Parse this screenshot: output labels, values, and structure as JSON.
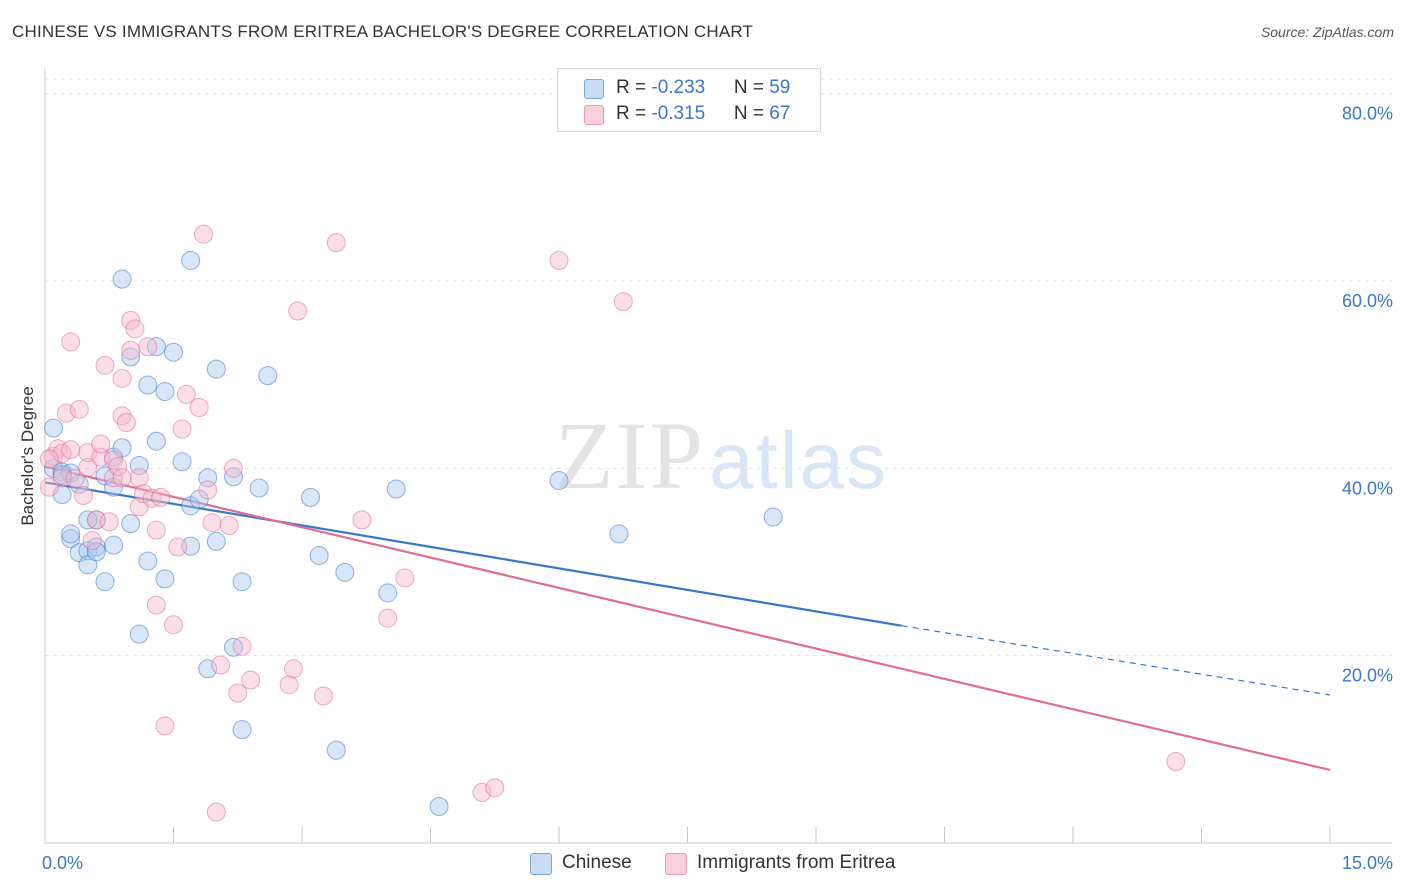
{
  "header": {
    "title": "CHINESE VS IMMIGRANTS FROM ERITREA BACHELOR'S DEGREE CORRELATION CHART",
    "source": "Source: ZipAtlas.com"
  },
  "watermark": {
    "zip": "ZIP",
    "atlas": "atlas"
  },
  "legend": {
    "rows": [
      {
        "r_label": "R = ",
        "r_value": "-0.233",
        "n_label": "N = ",
        "n_value": "59",
        "color": "#a9c8f0"
      },
      {
        "r_label": "R = ",
        "r_value": "-0.315",
        "n_label": "N = ",
        "n_value": "67",
        "color": "#f5b8cb"
      }
    ]
  },
  "bottom_legend": {
    "items": [
      "Chinese",
      "Immigrants from Eritrea"
    ]
  },
  "chart_data": {
    "type": "scatter",
    "ylabel": "Bachelor's Degree",
    "xlim": [
      0,
      15
    ],
    "ylim": [
      0,
      82
    ],
    "x_tick_labels": {
      "left": "0.0%",
      "right": "15.0%"
    },
    "y_ticks": [
      {
        "value": 20,
        "label": "20.0%"
      },
      {
        "value": 40,
        "label": "40.0%"
      },
      {
        "value": 60,
        "label": "60.0%"
      },
      {
        "value": 80,
        "label": "80.0%"
      }
    ],
    "grid": true,
    "series": [
      {
        "name": "Chinese",
        "color": "#3a78c7",
        "fill": "#a9c8f0",
        "trend": {
          "x0": 0.0,
          "y0": 38.5,
          "x1": 10.0,
          "y1": 23.2,
          "dash_to_x": 15.0,
          "dash_to_y": 15.8
        },
        "points": [
          [
            0.1,
            44.3
          ],
          [
            0.1,
            40.0
          ],
          [
            0.2,
            39.6
          ],
          [
            0.2,
            37.2
          ],
          [
            0.3,
            39.5
          ],
          [
            0.3,
            32.5
          ],
          [
            0.3,
            33.0
          ],
          [
            0.4,
            38.3
          ],
          [
            0.4,
            31.0
          ],
          [
            0.5,
            31.2
          ],
          [
            0.5,
            29.7
          ],
          [
            0.6,
            31.6
          ],
          [
            0.6,
            31.1
          ],
          [
            0.6,
            34.5
          ],
          [
            0.7,
            39.2
          ],
          [
            0.7,
            27.9
          ],
          [
            0.8,
            41.2
          ],
          [
            0.8,
            38.0
          ],
          [
            0.8,
            31.8
          ],
          [
            0.9,
            42.2
          ],
          [
            0.9,
            60.2
          ],
          [
            1.0,
            51.9
          ],
          [
            1.0,
            34.1
          ],
          [
            1.1,
            22.3
          ],
          [
            1.1,
            40.3
          ],
          [
            1.2,
            48.9
          ],
          [
            1.2,
            30.1
          ],
          [
            1.3,
            53.0
          ],
          [
            1.3,
            42.9
          ],
          [
            1.4,
            48.2
          ],
          [
            1.4,
            28.2
          ],
          [
            1.5,
            52.4
          ],
          [
            1.6,
            40.7
          ],
          [
            1.7,
            31.7
          ],
          [
            1.7,
            36.0
          ],
          [
            1.7,
            62.2
          ],
          [
            1.8,
            36.7
          ],
          [
            1.9,
            39.0
          ],
          [
            1.9,
            18.6
          ],
          [
            2.0,
            50.6
          ],
          [
            2.0,
            32.2
          ],
          [
            2.2,
            39.1
          ],
          [
            2.2,
            20.9
          ],
          [
            2.3,
            27.9
          ],
          [
            2.3,
            12.1
          ],
          [
            2.5,
            37.9
          ],
          [
            2.6,
            49.9
          ],
          [
            3.1,
            36.9
          ],
          [
            3.2,
            30.7
          ],
          [
            3.4,
            9.9
          ],
          [
            3.5,
            28.9
          ],
          [
            4.0,
            26.7
          ],
          [
            4.1,
            37.8
          ],
          [
            4.6,
            3.9
          ],
          [
            6.0,
            38.7
          ],
          [
            6.7,
            33.0
          ],
          [
            8.5,
            34.8
          ],
          [
            0.2,
            39.3
          ],
          [
            0.5,
            34.5
          ]
        ]
      },
      {
        "name": "Immigrants from Eritrea",
        "color": "#e06c98",
        "fill": "#f5b8cb",
        "trend": {
          "x0": 0.0,
          "y0": 40.2,
          "x1": 15.0,
          "y1": 7.8
        },
        "points": [
          [
            0.05,
            38.0
          ],
          [
            0.1,
            41.3
          ],
          [
            0.15,
            42.1
          ],
          [
            0.2,
            41.6
          ],
          [
            0.2,
            39.0
          ],
          [
            0.25,
            45.9
          ],
          [
            0.3,
            53.5
          ],
          [
            0.35,
            38.9
          ],
          [
            0.4,
            46.3
          ],
          [
            0.45,
            37.1
          ],
          [
            0.5,
            40.1
          ],
          [
            0.5,
            41.7
          ],
          [
            0.55,
            32.3
          ],
          [
            0.6,
            34.5
          ],
          [
            0.65,
            41.2
          ],
          [
            0.65,
            42.6
          ],
          [
            0.7,
            51.0
          ],
          [
            0.75,
            34.3
          ],
          [
            0.8,
            39.0
          ],
          [
            0.8,
            40.9
          ],
          [
            0.85,
            40.2
          ],
          [
            0.9,
            49.6
          ],
          [
            0.9,
            45.6
          ],
          [
            0.95,
            44.9
          ],
          [
            1.0,
            52.6
          ],
          [
            1.0,
            55.8
          ],
          [
            1.05,
            54.9
          ],
          [
            1.1,
            39.0
          ],
          [
            1.1,
            35.9
          ],
          [
            1.15,
            37.3
          ],
          [
            1.2,
            53.0
          ],
          [
            1.25,
            36.8
          ],
          [
            1.3,
            33.4
          ],
          [
            1.3,
            25.4
          ],
          [
            1.35,
            36.9
          ],
          [
            1.4,
            12.5
          ],
          [
            1.5,
            23.3
          ],
          [
            1.55,
            31.6
          ],
          [
            1.6,
            44.2
          ],
          [
            1.65,
            47.9
          ],
          [
            1.8,
            46.5
          ],
          [
            1.85,
            65.0
          ],
          [
            1.9,
            37.7
          ],
          [
            1.95,
            34.2
          ],
          [
            2.0,
            3.3
          ],
          [
            2.05,
            19.0
          ],
          [
            2.15,
            33.9
          ],
          [
            2.2,
            40.0
          ],
          [
            2.25,
            16.0
          ],
          [
            2.3,
            21.0
          ],
          [
            2.4,
            17.4
          ],
          [
            2.85,
            16.9
          ],
          [
            2.9,
            18.6
          ],
          [
            2.95,
            56.8
          ],
          [
            3.25,
            15.7
          ],
          [
            3.4,
            64.1
          ],
          [
            3.7,
            34.5
          ],
          [
            4.0,
            24.0
          ],
          [
            4.2,
            28.3
          ],
          [
            5.1,
            5.4
          ],
          [
            5.25,
            5.9
          ],
          [
            6.0,
            62.2
          ],
          [
            6.75,
            57.8
          ],
          [
            0.3,
            42.0
          ],
          [
            0.9,
            39.0
          ],
          [
            13.2,
            8.7
          ],
          [
            0.05,
            41.0
          ]
        ]
      }
    ]
  }
}
